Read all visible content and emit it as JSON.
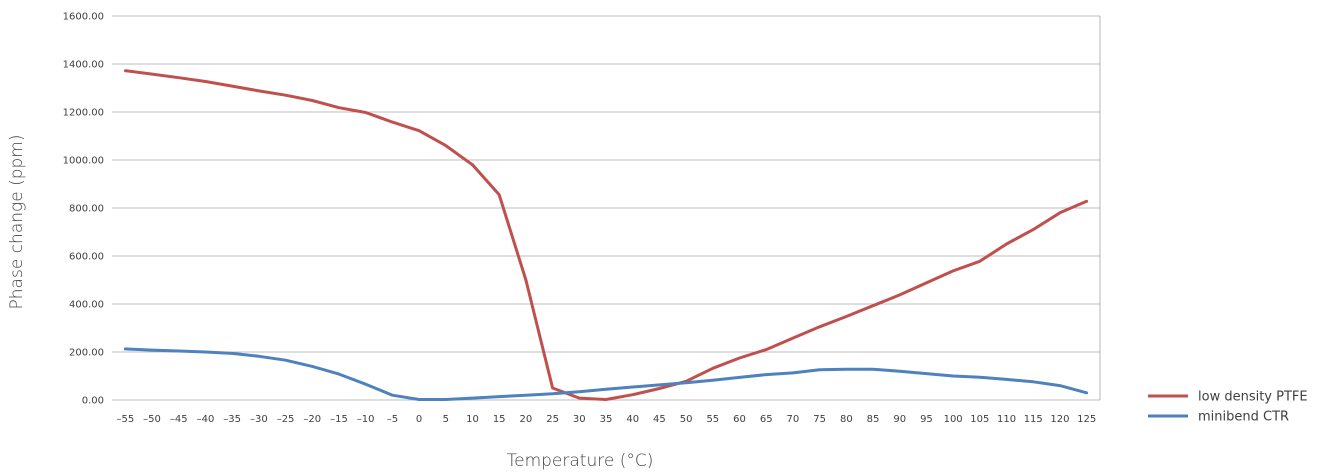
{
  "chart_data": {
    "type": "line",
    "title": "",
    "xlabel": "Temperature (°C)",
    "ylabel": "Phase change (ppm)",
    "ylim": [
      0,
      1600
    ],
    "yticks": [
      "0.00",
      "200.00",
      "400.00",
      "600.00",
      "800.00",
      "1000.00",
      "1200.00",
      "1400.00",
      "1600.00"
    ],
    "grid": true,
    "legend_position": "right",
    "x": [
      -55,
      -50,
      -45,
      -40,
      -35,
      -30,
      -25,
      -20,
      -15,
      -10,
      -5,
      0,
      5,
      10,
      15,
      20,
      25,
      30,
      35,
      40,
      45,
      50,
      55,
      60,
      65,
      70,
      75,
      80,
      85,
      90,
      95,
      100,
      105,
      110,
      115,
      120,
      125
    ],
    "series": [
      {
        "name": "low density PTFE",
        "color": "#c0504d",
        "values": [
          1372,
          1358,
          1343,
          1327,
          1308,
          1288,
          1270,
          1248,
          1218,
          1198,
          1158,
          1122,
          1060,
          980,
          855,
          500,
          50,
          8,
          2,
          22,
          48,
          78,
          132,
          175,
          210,
          258,
          305,
          348,
          393,
          438,
          488,
          538,
          578,
          650,
          710,
          780,
          828
        ]
      },
      {
        "name": "minibend CTR",
        "color": "#4f81bd",
        "values": [
          213,
          208,
          204,
          200,
          194,
          182,
          166,
          140,
          108,
          66,
          20,
          2,
          2,
          8,
          14,
          20,
          26,
          34,
          45,
          54,
          63,
          72,
          82,
          94,
          106,
          113,
          126,
          128,
          128,
          120,
          110,
          100,
          95,
          86,
          76,
          60,
          30
        ]
      }
    ]
  }
}
